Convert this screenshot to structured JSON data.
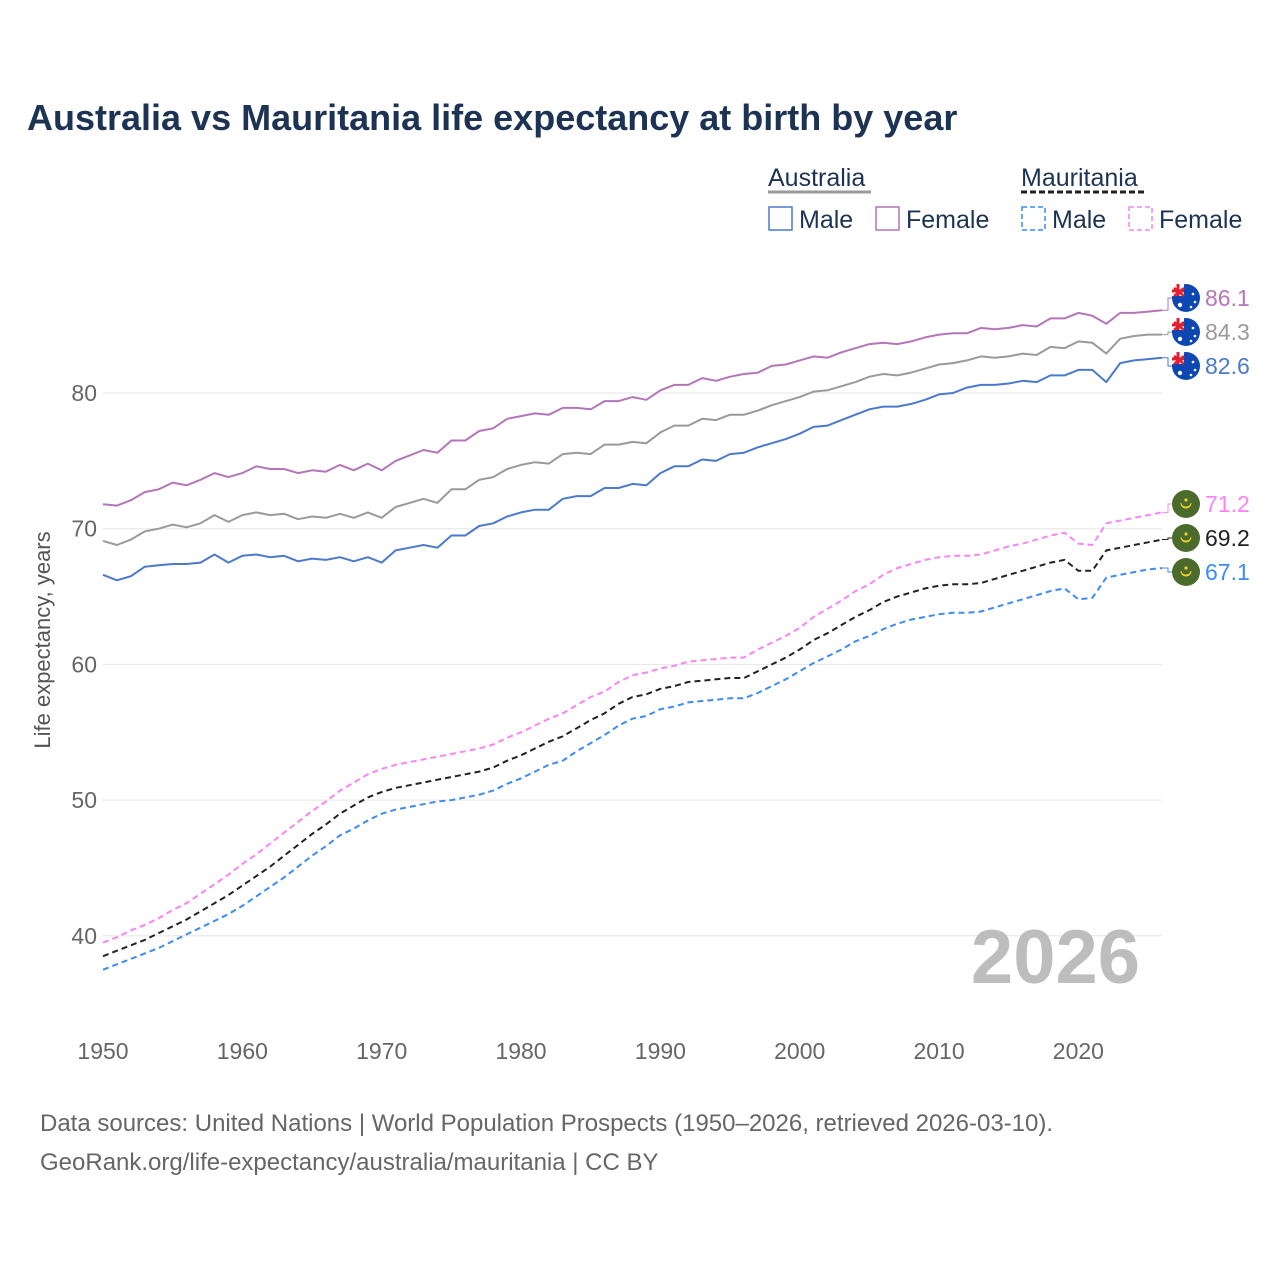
{
  "chart_data": {
    "type": "line",
    "title": "Australia vs Mauritania life expectancy at birth by year",
    "ylabel": "Life expectancy, years",
    "xlabel": "",
    "x_range": [
      1950,
      2026
    ],
    "ylim": [
      34.5,
      89
    ],
    "x_ticks": [
      1950,
      1960,
      1970,
      1980,
      1990,
      2000,
      2010,
      2020
    ],
    "y_ticks": [
      40,
      50,
      60,
      70,
      80
    ],
    "grid": true,
    "watermark_year": "2026",
    "legend": {
      "placement": "top-right",
      "groups": [
        {
          "label": "Australia",
          "style": "solid",
          "color": "#9a9a9a",
          "items": [
            {
              "label": "Male",
              "color": "#4a7acb"
            },
            {
              "label": "Female",
              "color": "#b476b8"
            }
          ]
        },
        {
          "label": "Mauritania",
          "style": "dashed",
          "color": "#222222",
          "items": [
            {
              "label": "Male",
              "color": "#3d8bf5"
            },
            {
              "label": "Female",
              "color": "#f884f5"
            }
          ]
        }
      ]
    },
    "series": [
      {
        "name": "Australia Female",
        "country": "australia",
        "color": "#b476b8",
        "dashed": false,
        "end_label": "86.1",
        "values": [
          71.8,
          71.7,
          72.1,
          72.7,
          72.9,
          73.4,
          73.2,
          73.6,
          74.1,
          73.8,
          74.1,
          74.6,
          74.4,
          74.4,
          74.1,
          74.3,
          74.2,
          74.7,
          74.3,
          74.8,
          74.3,
          75.0,
          75.4,
          75.8,
          75.6,
          76.5,
          76.5,
          77.2,
          77.4,
          78.1,
          78.3,
          78.5,
          78.4,
          78.9,
          78.9,
          78.8,
          79.4,
          79.4,
          79.7,
          79.5,
          80.2,
          80.6,
          80.6,
          81.1,
          80.9,
          81.2,
          81.4,
          81.5,
          82.0,
          82.1,
          82.4,
          82.7,
          82.6,
          83.0,
          83.3,
          83.6,
          83.7,
          83.6,
          83.8,
          84.1,
          84.3,
          84.4,
          84.4,
          84.8,
          84.7,
          84.8,
          85.0,
          84.9,
          85.5,
          85.5,
          85.9,
          85.7,
          85.1,
          85.9,
          85.9,
          86.0,
          86.1
        ]
      },
      {
        "name": "Australia Total",
        "country": "australia",
        "color": "#9a9a9a",
        "dashed": false,
        "end_label": "84.3",
        "values": [
          69.1,
          68.8,
          69.2,
          69.8,
          70.0,
          70.3,
          70.1,
          70.4,
          71.0,
          70.5,
          71.0,
          71.2,
          71.0,
          71.1,
          70.7,
          70.9,
          70.8,
          71.1,
          70.8,
          71.2,
          70.8,
          71.6,
          71.9,
          72.2,
          71.9,
          72.9,
          72.9,
          73.6,
          73.8,
          74.4,
          74.7,
          74.9,
          74.8,
          75.5,
          75.6,
          75.5,
          76.2,
          76.2,
          76.4,
          76.3,
          77.1,
          77.6,
          77.6,
          78.1,
          78.0,
          78.4,
          78.4,
          78.7,
          79.1,
          79.4,
          79.7,
          80.1,
          80.2,
          80.5,
          80.8,
          81.2,
          81.4,
          81.3,
          81.5,
          81.8,
          82.1,
          82.2,
          82.4,
          82.7,
          82.6,
          82.7,
          82.9,
          82.8,
          83.4,
          83.3,
          83.8,
          83.7,
          82.9,
          84.0,
          84.2,
          84.3,
          84.3
        ]
      },
      {
        "name": "Australia Male",
        "country": "australia",
        "color": "#4a7acb",
        "dashed": false,
        "end_label": "82.6",
        "values": [
          66.6,
          66.2,
          66.5,
          67.2,
          67.3,
          67.4,
          67.4,
          67.5,
          68.1,
          67.5,
          68.0,
          68.1,
          67.9,
          68.0,
          67.6,
          67.8,
          67.7,
          67.9,
          67.6,
          67.9,
          67.5,
          68.4,
          68.6,
          68.8,
          68.6,
          69.5,
          69.5,
          70.2,
          70.4,
          70.9,
          71.2,
          71.4,
          71.4,
          72.2,
          72.4,
          72.4,
          73.0,
          73.0,
          73.3,
          73.2,
          74.1,
          74.6,
          74.6,
          75.1,
          75.0,
          75.5,
          75.6,
          76.0,
          76.3,
          76.6,
          77.0,
          77.5,
          77.6,
          78.0,
          78.4,
          78.8,
          79.0,
          79.0,
          79.2,
          79.5,
          79.9,
          80.0,
          80.4,
          80.6,
          80.6,
          80.7,
          80.9,
          80.8,
          81.3,
          81.3,
          81.7,
          81.7,
          80.8,
          82.2,
          82.4,
          82.5,
          82.6
        ]
      },
      {
        "name": "Mauritania Female",
        "country": "mauritania",
        "color": "#f884f5",
        "dashed": true,
        "end_label": "71.2",
        "values": [
          39.5,
          39.9,
          40.4,
          40.8,
          41.3,
          41.9,
          42.4,
          43.1,
          43.8,
          44.5,
          45.3,
          46.0,
          46.8,
          47.6,
          48.4,
          49.2,
          49.9,
          50.7,
          51.3,
          51.9,
          52.3,
          52.6,
          52.8,
          53.0,
          53.2,
          53.4,
          53.6,
          53.8,
          54.1,
          54.6,
          55.0,
          55.5,
          56.0,
          56.4,
          57.0,
          57.6,
          58.0,
          58.7,
          59.2,
          59.4,
          59.7,
          59.9,
          60.2,
          60.3,
          60.4,
          60.5,
          60.5,
          61.1,
          61.6,
          62.1,
          62.7,
          63.5,
          64.1,
          64.7,
          65.4,
          65.9,
          66.6,
          67.1,
          67.4,
          67.7,
          67.9,
          68.0,
          68.0,
          68.1,
          68.4,
          68.7,
          68.9,
          69.2,
          69.5,
          69.7,
          68.9,
          68.8,
          70.4,
          70.6,
          70.8,
          71.0,
          71.2
        ]
      },
      {
        "name": "Mauritania Total",
        "country": "mauritania",
        "color": "#222222",
        "dashed": true,
        "end_label": "69.2",
        "values": [
          38.5,
          38.9,
          39.3,
          39.7,
          40.2,
          40.7,
          41.2,
          41.8,
          42.4,
          43.0,
          43.7,
          44.4,
          45.1,
          45.9,
          46.7,
          47.5,
          48.2,
          49.0,
          49.6,
          50.2,
          50.6,
          50.9,
          51.1,
          51.3,
          51.5,
          51.7,
          51.9,
          52.1,
          52.4,
          52.9,
          53.3,
          53.8,
          54.3,
          54.7,
          55.3,
          55.9,
          56.4,
          57.1,
          57.6,
          57.8,
          58.2,
          58.4,
          58.7,
          58.8,
          58.9,
          59.0,
          59.0,
          59.5,
          60.0,
          60.5,
          61.1,
          61.8,
          62.3,
          62.9,
          63.5,
          64.0,
          64.6,
          65.0,
          65.3,
          65.6,
          65.8,
          65.9,
          65.9,
          66.0,
          66.3,
          66.6,
          66.9,
          67.2,
          67.5,
          67.7,
          66.9,
          66.9,
          68.4,
          68.6,
          68.8,
          69.0,
          69.2
        ]
      },
      {
        "name": "Mauritania Male",
        "country": "mauritania",
        "color": "#3d8bf5",
        "dashed": true,
        "end_label": "67.1",
        "values": [
          37.5,
          37.9,
          38.3,
          38.7,
          39.1,
          39.6,
          40.1,
          40.6,
          41.1,
          41.6,
          42.2,
          42.9,
          43.6,
          44.3,
          45.1,
          45.9,
          46.6,
          47.4,
          47.9,
          48.5,
          49.0,
          49.3,
          49.5,
          49.7,
          49.9,
          50.0,
          50.2,
          50.4,
          50.7,
          51.2,
          51.6,
          52.1,
          52.6,
          52.9,
          53.6,
          54.2,
          54.8,
          55.5,
          56.0,
          56.2,
          56.7,
          56.9,
          57.2,
          57.3,
          57.4,
          57.5,
          57.5,
          57.9,
          58.4,
          58.9,
          59.5,
          60.1,
          60.6,
          61.1,
          61.7,
          62.1,
          62.6,
          63.0,
          63.3,
          63.5,
          63.7,
          63.8,
          63.8,
          63.9,
          64.2,
          64.5,
          64.8,
          65.1,
          65.4,
          65.6,
          64.8,
          64.9,
          66.4,
          66.6,
          66.8,
          67.0,
          67.1
        ]
      }
    ]
  },
  "footer": {
    "line1": "Data sources: United Nations | World Population Prospects (1950–2026, retrieved 2026-03-10).",
    "line2": "GeoRank.org/life-expectancy/australia/mauritania | CC BY"
  }
}
